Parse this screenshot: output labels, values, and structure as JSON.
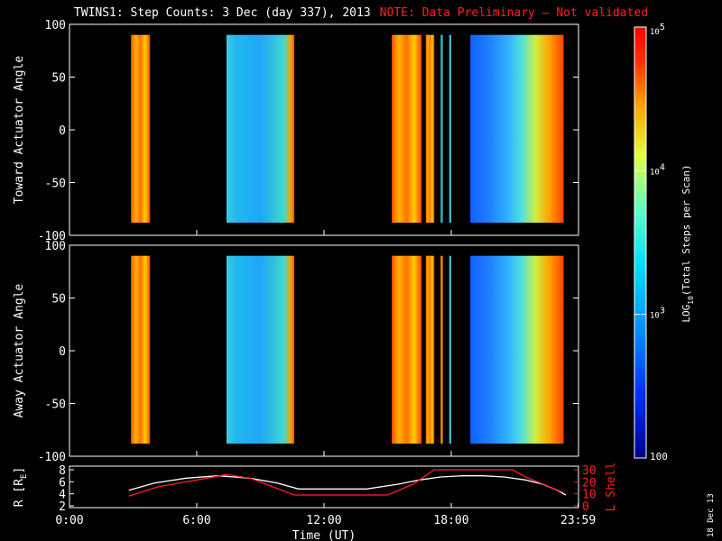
{
  "title": {
    "main": "TWINS1: Step Counts:  3 Dec (day 337), 2013",
    "note": "NOTE: Data Preliminary – Not validated"
  },
  "date_stamp": "18 Dec 13",
  "colors": {
    "background": "#000000",
    "frame": "#ffffff",
    "note": "#ff2020",
    "lshell_line": "#ff2020",
    "r_line": "#ffffff"
  },
  "colorbar": {
    "label": "LOG10(Total Steps per Scan)",
    "label_main": "LOG",
    "label_sub": "10",
    "label_rest": "(Total Steps per Scan)",
    "ticks": [
      {
        "value": 100,
        "label": "100"
      },
      {
        "value": 1000,
        "label_base": "10",
        "label_exp": "3"
      },
      {
        "value": 10000,
        "label_base": "10",
        "label_exp": "4"
      },
      {
        "value": 100000,
        "label_base": "10",
        "label_exp": "5"
      }
    ],
    "range": [
      100,
      100000
    ],
    "scale": "log"
  },
  "chart_data": [
    {
      "type": "heatmap",
      "name": "toward",
      "ylabel": "Toward Actuator Angle",
      "ylim": [
        -100,
        100
      ],
      "yticks": [
        100,
        50,
        0,
        -50,
        -100
      ],
      "xlim": [
        0,
        24
      ],
      "data_y_range": [
        -88,
        90
      ],
      "blocks": [
        {
          "t0": 2.9,
          "t1": 3.8,
          "level": "high"
        },
        {
          "t0": 7.4,
          "t1": 10.6,
          "level": "low"
        },
        {
          "t0": 15.2,
          "t1": 16.6,
          "level": "high"
        },
        {
          "t0": 16.8,
          "t1": 17.2,
          "level": "high"
        },
        {
          "t0": 17.5,
          "t1": 17.6,
          "level": "low"
        },
        {
          "t0": 17.9,
          "t1": 18.0,
          "level": "low"
        },
        {
          "t0": 18.9,
          "t1": 23.3,
          "level": "low-high"
        }
      ]
    },
    {
      "type": "heatmap",
      "name": "away",
      "ylabel": "Away Actuator Angle",
      "ylim": [
        -100,
        100
      ],
      "yticks": [
        100,
        50,
        0,
        -50,
        -100
      ],
      "xlim": [
        0,
        24
      ],
      "data_y_range": [
        -88,
        90
      ],
      "blocks": [
        {
          "t0": 2.9,
          "t1": 3.8,
          "level": "high"
        },
        {
          "t0": 7.4,
          "t1": 10.6,
          "level": "low"
        },
        {
          "t0": 15.2,
          "t1": 16.6,
          "level": "high"
        },
        {
          "t0": 16.8,
          "t1": 17.2,
          "level": "high"
        },
        {
          "t0": 17.5,
          "t1": 17.6,
          "level": "high"
        },
        {
          "t0": 17.9,
          "t1": 18.0,
          "level": "low"
        },
        {
          "t0": 18.9,
          "t1": 23.3,
          "level": "low-high"
        }
      ]
    },
    {
      "type": "line",
      "name": "orbit",
      "xlabel": "Time (UT)",
      "xticks": [
        {
          "value": 0,
          "label": "0:00"
        },
        {
          "value": 6,
          "label": "6:00"
        },
        {
          "value": 12,
          "label": "12:00"
        },
        {
          "value": 18,
          "label": "18:00"
        },
        {
          "value": 23.983,
          "label": "23:59"
        }
      ],
      "xlim": [
        0,
        24
      ],
      "ylabel_left": "R [RE]",
      "ylabel_left_main": "R [R",
      "ylabel_left_sub": "E",
      "ylabel_left_end": "]",
      "ylim_left": [
        2,
        8
      ],
      "yticks_left": [
        8,
        6,
        4,
        2
      ],
      "ylabel_right": "L Shell",
      "ylim_right": [
        0,
        30
      ],
      "yticks_right": [
        30,
        20,
        10,
        0
      ],
      "series": [
        {
          "name": "R",
          "axis": "left",
          "x": [
            2.8,
            4.0,
            5.5,
            7.0,
            8.5,
            9.8,
            10.8,
            12.0,
            14.0,
            15.5,
            16.5,
            17.5,
            18.5,
            19.5,
            20.5,
            21.5,
            22.3,
            23.0,
            23.4
          ],
          "y": [
            4.6,
            5.8,
            6.6,
            7.0,
            6.6,
            5.8,
            4.8,
            4.8,
            4.8,
            5.6,
            6.3,
            6.8,
            7.0,
            7.0,
            6.8,
            6.3,
            5.6,
            4.6,
            3.8
          ]
        },
        {
          "name": "L Shell",
          "axis": "right",
          "x": [
            2.8,
            4.2,
            6.5,
            7.4,
            8.5,
            10.6,
            12.0,
            15.0,
            16.2,
            17.2,
            20.9,
            21.5,
            23.3
          ],
          "y": [
            8,
            16,
            23,
            26,
            23,
            9,
            9,
            9,
            18,
            30,
            30,
            24,
            11
          ]
        }
      ]
    }
  ]
}
